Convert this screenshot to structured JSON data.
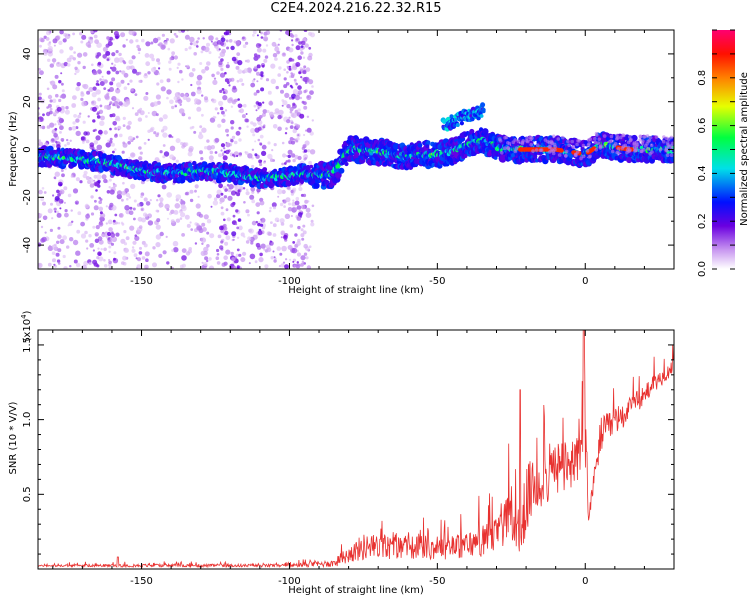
{
  "title": "C2E4.2024.216.22.32.R15",
  "chart_data": [
    {
      "type": "heatmap",
      "xlabel": "Height of straight line (km)",
      "ylabel": "Frequency (Hz)",
      "xlim": [
        -185,
        30
      ],
      "ylim": [
        -50,
        50
      ],
      "xticks": [
        -150,
        -100,
        -50,
        0
      ],
      "yticks": [
        -40,
        -20,
        0,
        20,
        40
      ],
      "colorbar": {
        "label": "Normalized spectral amplitude",
        "range": [
          0.0,
          1.0
        ],
        "ticks": [
          "0.0",
          "0.2",
          "0.4",
          "0.6",
          "0.8"
        ],
        "tick_values": [
          0.0,
          0.2,
          0.4,
          0.6,
          0.8
        ],
        "colormap": "rainbow (violet-blue-cyan-green-yellow-red)"
      },
      "ridge": {
        "x": [
          -182,
          -170,
          -160,
          -150,
          -140,
          -130,
          -120,
          -110,
          -100,
          -95,
          -90,
          -85,
          -80,
          -75,
          -70,
          -65,
          -60,
          -55,
          -50,
          -45,
          -40,
          -35,
          -30,
          -25,
          -20,
          -15,
          -10,
          -5,
          0,
          5,
          10,
          15,
          20,
          25,
          30
        ],
        "frequency": [
          -3,
          -4,
          -6,
          -9,
          -10,
          -9,
          -10,
          -12,
          -11,
          -10,
          -11,
          -10,
          0,
          0,
          -1,
          -2,
          -3,
          -2,
          -2,
          -1,
          2,
          4,
          1,
          0,
          0,
          0,
          0,
          -1,
          -2,
          2,
          1,
          0,
          0,
          0,
          0
        ]
      },
      "upper_branch": {
        "x": [
          -48,
          -44,
          -40,
          -37,
          -34
        ],
        "frequency": [
          10,
          12,
          14,
          15,
          17
        ]
      }
    },
    {
      "type": "line",
      "xlabel": "Height of straight line (km)",
      "ylabel": "SNR (10 * V/V)",
      "y_multiplier": "(x10^4)",
      "y_multiplier_base": "(x10",
      "y_multiplier_exp": "4",
      "xlim": [
        -185,
        30
      ],
      "ylim": [
        0,
        1.6
      ],
      "xticks": [
        -150,
        -100,
        -50,
        0
      ],
      "yticks": [
        0.5,
        1.0,
        1.5
      ],
      "ytick_labels": [
        "0.5",
        "1.0",
        "1.5"
      ],
      "color": "#e8312f",
      "envelope": {
        "x": [
          -185,
          -160,
          -130,
          -100,
          -85,
          -80,
          -75,
          -65,
          -55,
          -45,
          -35,
          -30,
          -25,
          -22,
          -20,
          -15,
          -10,
          -5,
          -2,
          0,
          1,
          5,
          15,
          25,
          30
        ],
        "base": [
          0.02,
          0.02,
          0.02,
          0.02,
          0.03,
          0.08,
          0.12,
          0.12,
          0.12,
          0.12,
          0.15,
          0.2,
          0.3,
          0.1,
          0.4,
          0.55,
          0.6,
          0.65,
          0.7,
          0.8,
          0.3,
          0.85,
          1.05,
          1.25,
          1.35
        ],
        "spread": [
          0.01,
          0.02,
          0.02,
          0.02,
          0.05,
          0.12,
          0.18,
          0.16,
          0.16,
          0.16,
          0.2,
          0.25,
          0.35,
          0.4,
          0.45,
          0.4,
          0.4,
          0.35,
          0.3,
          0.7,
          0.05,
          0.25,
          0.15,
          0.12,
          0.1
        ]
      },
      "spikes": [
        {
          "x": -22,
          "y": 1.2
        },
        {
          "x": -0.5,
          "y": 1.6
        },
        {
          "x": -85,
          "y": 0.05
        },
        {
          "x": -158,
          "y": 0.08
        }
      ]
    }
  ]
}
